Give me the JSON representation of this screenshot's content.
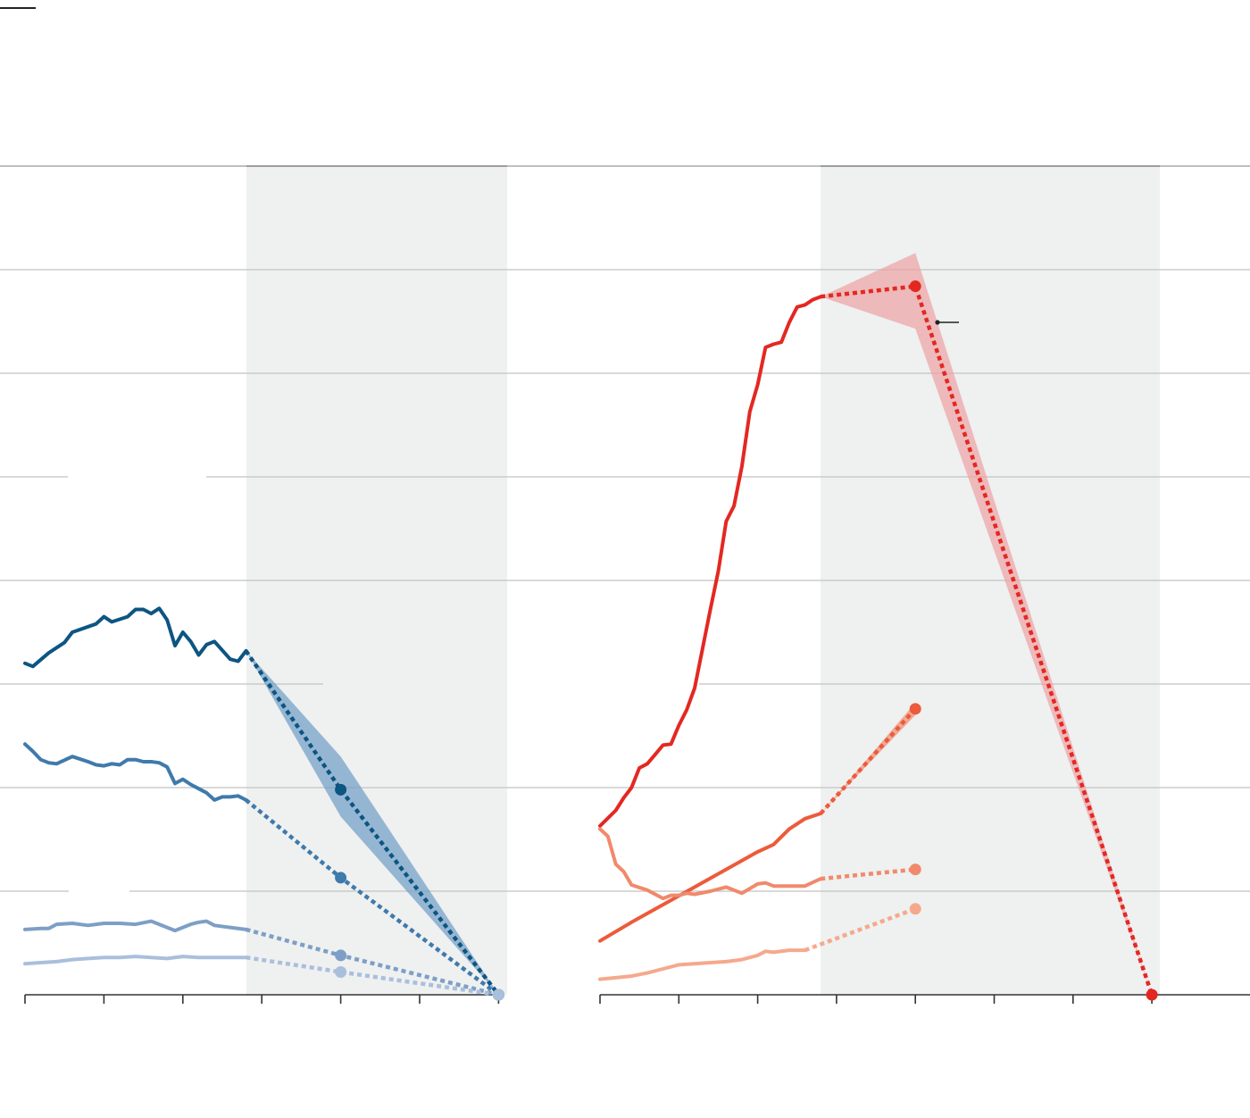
{
  "palette": {
    "blue_dark": "#0d5582",
    "blue_mid": "#3f7aac",
    "blue_light": "#7d9fc6",
    "blue_pale": "#a9bfdc",
    "blue_band": "#6f9cc4",
    "red_dark": "#e32822",
    "red_mid": "#ec5b3a",
    "red_light": "#f08a6c",
    "red_pale": "#f5a98c",
    "red_band": "#eea1a2",
    "projection_shade": "#eff0f0",
    "grid": "#c2c2c2",
    "axis": "#333333"
  },
  "chart_data": [
    {
      "type": "line",
      "panel": "left",
      "title": "",
      "xlabel": "",
      "ylabel": "",
      "grid": true,
      "gridlines": 8,
      "ylim": [
        0,
        8
      ],
      "xlim": [
        0,
        6
      ],
      "ticks": [
        0,
        1,
        2,
        3,
        4,
        5,
        6
      ],
      "tick_labels": [
        "",
        "",
        "",
        "",
        "",
        "",
        ""
      ],
      "projection_region": [
        2.8,
        6.1
      ],
      "series": [
        {
          "color_key": "blue_dark",
          "x": [
            0,
            0.1,
            0.3,
            0.5,
            0.6,
            0.9,
            1.0,
            1.1,
            1.3,
            1.4,
            1.5,
            1.6,
            1.7,
            1.8,
            1.9,
            2.0,
            2.1,
            2.2,
            2.3,
            2.4,
            2.6,
            2.7,
            2.8
          ],
          "y": [
            3.2,
            3.17,
            3.3,
            3.4,
            3.5,
            3.58,
            3.65,
            3.6,
            3.65,
            3.72,
            3.72,
            3.68,
            3.73,
            3.62,
            3.37,
            3.5,
            3.41,
            3.28,
            3.38,
            3.41,
            3.24,
            3.22,
            3.32
          ]
        },
        {
          "color_key": "blue_mid",
          "x": [
            0,
            0.1,
            0.2,
            0.3,
            0.4,
            0.6,
            0.8,
            0.9,
            1.0,
            1.1,
            1.2,
            1.3,
            1.4,
            1.5,
            1.6,
            1.7,
            1.8,
            1.9,
            2.0,
            2.1,
            2.2,
            2.3,
            2.4,
            2.5,
            2.6,
            2.7,
            2.8
          ],
          "y": [
            2.42,
            2.35,
            2.27,
            2.24,
            2.23,
            2.3,
            2.25,
            2.22,
            2.21,
            2.23,
            2.22,
            2.27,
            2.27,
            2.25,
            2.25,
            2.24,
            2.2,
            2.04,
            2.08,
            2.03,
            1.99,
            1.95,
            1.88,
            1.91,
            1.91,
            1.92,
            1.88
          ]
        },
        {
          "color_key": "blue_light",
          "x": [
            0,
            0.2,
            0.3,
            0.4,
            0.6,
            0.8,
            0.9,
            1.0,
            1.2,
            1.4,
            1.6,
            1.7,
            1.8,
            1.9,
            2.0,
            2.1,
            2.2,
            2.3,
            2.4,
            2.6,
            2.8
          ],
          "y": [
            0.63,
            0.64,
            0.64,
            0.68,
            0.69,
            0.67,
            0.68,
            0.69,
            0.69,
            0.68,
            0.71,
            0.68,
            0.65,
            0.62,
            0.65,
            0.68,
            0.7,
            0.71,
            0.67,
            0.65,
            0.63
          ]
        },
        {
          "color_key": "blue_pale",
          "x": [
            0,
            0.2,
            0.4,
            0.6,
            0.8,
            1.0,
            1.2,
            1.4,
            1.6,
            1.8,
            2.0,
            2.2,
            2.4,
            2.6,
            2.8
          ],
          "y": [
            0.3,
            0.31,
            0.32,
            0.34,
            0.35,
            0.36,
            0.36,
            0.37,
            0.36,
            0.35,
            0.37,
            0.36,
            0.36,
            0.36,
            0.36
          ]
        }
      ],
      "projections": [
        {
          "color_key": "blue_dark",
          "x": [
            2.8,
            4.0,
            6.0
          ],
          "y": [
            3.32,
            1.98,
            0
          ]
        },
        {
          "color_key": "blue_mid",
          "x": [
            2.8,
            4.0,
            6.0
          ],
          "y": [
            1.88,
            1.13,
            0
          ]
        },
        {
          "color_key": "blue_light",
          "x": [
            2.8,
            4.0,
            6.0
          ],
          "y": [
            0.63,
            0.38,
            0
          ]
        },
        {
          "color_key": "blue_pale",
          "x": [
            2.8,
            4.0,
            6.0
          ],
          "y": [
            0.36,
            0.22,
            0
          ]
        }
      ],
      "band": {
        "color_key": "blue_band",
        "x": [
          2.8,
          4.0,
          6.0
        ],
        "upper": [
          3.32,
          2.3,
          0
        ],
        "lower": [
          3.32,
          1.72,
          0
        ]
      }
    },
    {
      "type": "line",
      "panel": "right",
      "title": "",
      "xlabel": "",
      "ylabel": "",
      "grid": true,
      "gridlines": 8,
      "ylim": [
        0,
        8
      ],
      "xlim": [
        0,
        7
      ],
      "ticks": [
        0,
        1,
        2,
        3,
        4,
        5,
        6,
        7
      ],
      "tick_labels": [
        "",
        "",
        "",
        "",
        "",
        "",
        "",
        ""
      ],
      "projection_region": [
        2.8,
        7.1
      ],
      "series": [
        {
          "color_key": "red_dark",
          "x": [
            0,
            0.2,
            0.3,
            0.4,
            0.5,
            0.6,
            0.7,
            0.8,
            0.9,
            1.0,
            1.1,
            1.2,
            1.3,
            1.4,
            1.5,
            1.6,
            1.7,
            1.8,
            1.9,
            2.0,
            2.1,
            2.2,
            2.3,
            2.4,
            2.5,
            2.6,
            2.7,
            2.8
          ],
          "y": [
            1.63,
            1.78,
            1.9,
            2.0,
            2.19,
            2.23,
            2.32,
            2.41,
            2.42,
            2.6,
            2.75,
            2.96,
            3.34,
            3.72,
            4.09,
            4.57,
            4.72,
            5.1,
            5.63,
            5.89,
            6.25,
            6.28,
            6.3,
            6.49,
            6.64,
            6.66,
            6.71,
            6.74
          ]
        },
        {
          "color_key": "red_mid",
          "x": [
            0,
            0.4,
            0.8,
            1.2,
            1.6,
            2.0,
            2.2,
            2.4,
            2.6,
            2.8
          ],
          "y": [
            0.52,
            0.7,
            0.87,
            1.04,
            1.21,
            1.38,
            1.45,
            1.6,
            1.7,
            1.75
          ]
        },
        {
          "color_key": "red_light",
          "x": [
            0,
            0.1,
            0.2,
            0.3,
            0.4,
            0.6,
            0.8,
            0.9,
            1.0,
            1.1,
            1.2,
            1.4,
            1.6,
            1.8,
            2.0,
            2.1,
            2.2,
            2.4,
            2.6,
            2.8
          ],
          "y": [
            1.6,
            1.53,
            1.26,
            1.19,
            1.06,
            1.01,
            0.93,
            0.96,
            0.96,
            0.98,
            0.97,
            1.0,
            1.04,
            0.98,
            1.07,
            1.08,
            1.05,
            1.05,
            1.05,
            1.12
          ]
        },
        {
          "color_key": "red_pale",
          "x": [
            0,
            0.4,
            0.6,
            0.8,
            1.0,
            1.2,
            1.4,
            1.6,
            1.8,
            2.0,
            2.1,
            2.2,
            2.4,
            2.6
          ],
          "y": [
            0.15,
            0.18,
            0.21,
            0.25,
            0.29,
            0.3,
            0.31,
            0.32,
            0.34,
            0.38,
            0.42,
            0.41,
            0.43,
            0.43
          ]
        }
      ],
      "projections": [
        {
          "color_key": "red_dark",
          "x": [
            2.8,
            4.0,
            7.0
          ],
          "y": [
            6.74,
            6.84,
            0
          ]
        },
        {
          "color_key": "red_mid",
          "x": [
            2.8,
            4.0
          ],
          "y": [
            1.75,
            2.76
          ]
        },
        {
          "color_key": "red_light",
          "x": [
            2.8,
            4.0
          ],
          "y": [
            1.12,
            1.21
          ]
        },
        {
          "color_key": "red_pale",
          "x": [
            2.6,
            4.0
          ],
          "y": [
            0.43,
            0.83
          ]
        }
      ],
      "band": {
        "color_key": "red_band",
        "x": [
          2.8,
          4.0,
          7.0
        ],
        "upper": [
          6.74,
          7.16,
          0
        ],
        "lower": [
          6.74,
          6.43,
          0
        ]
      },
      "band_red_mid": {
        "color_key": "red_light",
        "x": [
          2.8,
          4.0
        ],
        "upper": [
          1.75,
          2.82
        ],
        "lower": [
          1.75,
          2.7
        ]
      }
    }
  ]
}
